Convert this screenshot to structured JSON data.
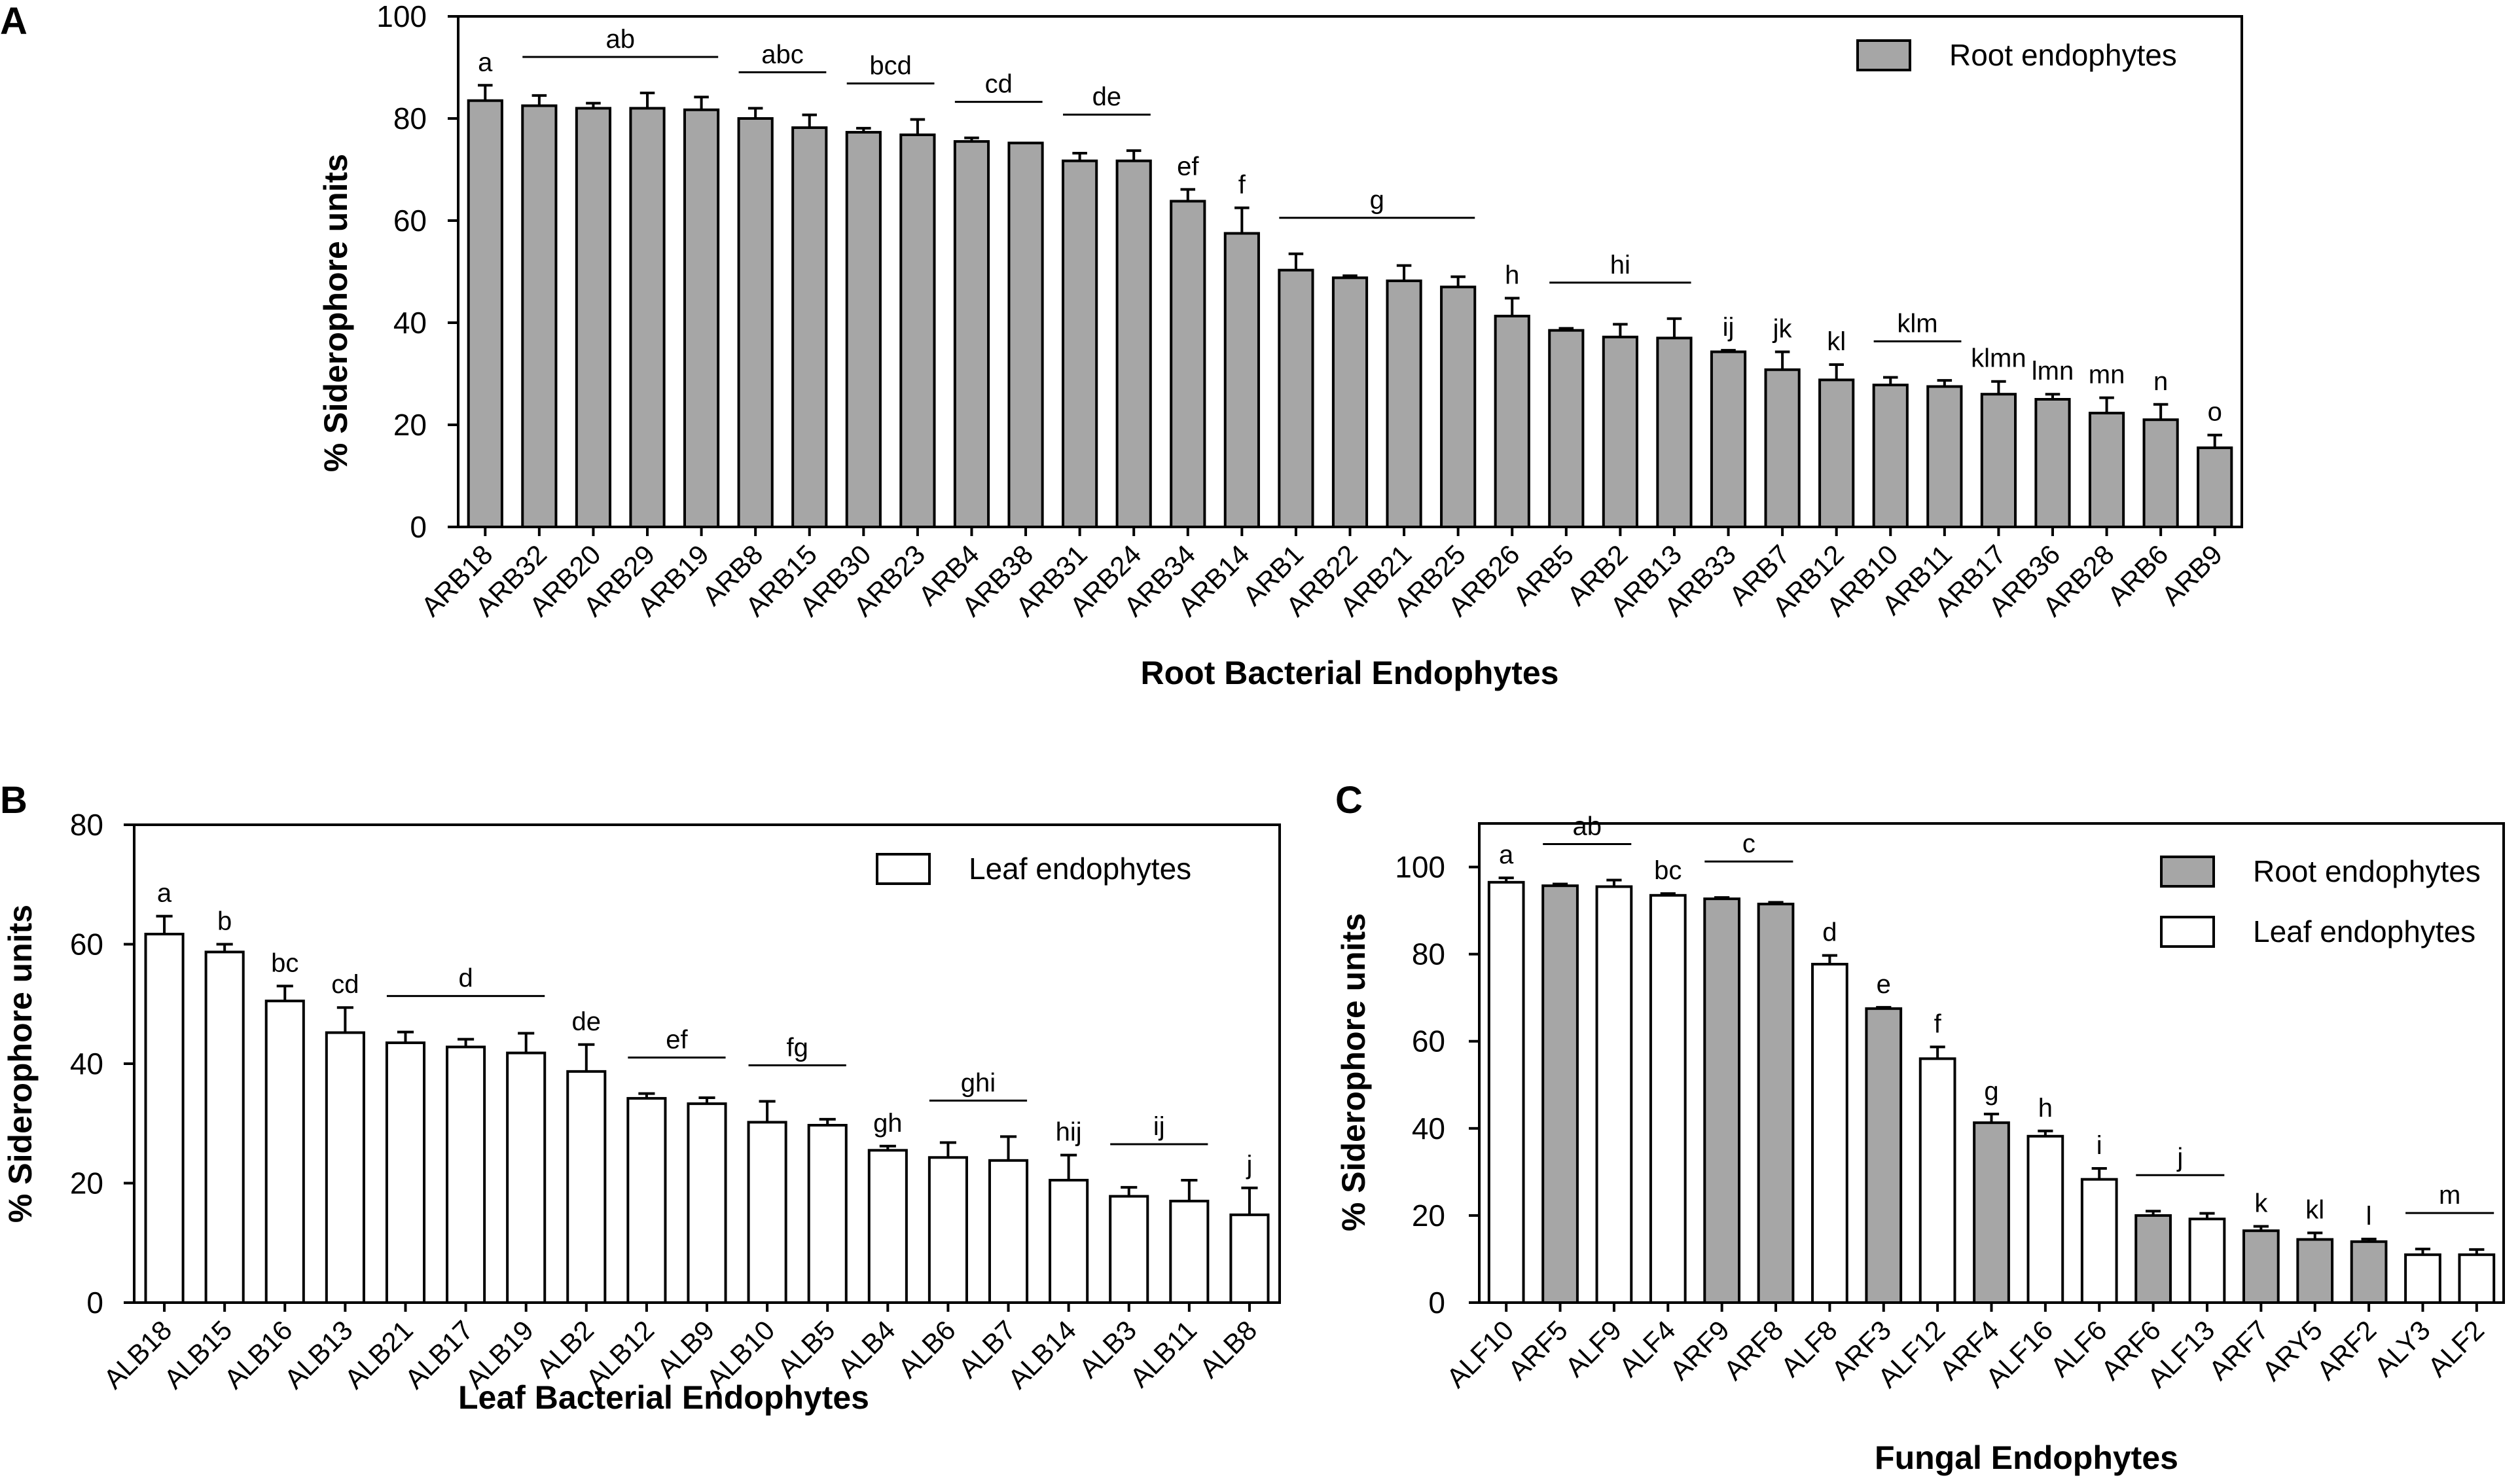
{
  "colors": {
    "root": "#a6a6a6",
    "leaf": "#ffffff",
    "stroke": "#000000"
  },
  "chart_data": [
    {
      "panel": "A",
      "type": "bar",
      "title": "",
      "xlabel": "Root Bacterial Endophytes",
      "ylabel": "% Siderophore units",
      "ylim": [
        0,
        100
      ],
      "yticks": [
        0,
        20,
        40,
        60,
        80,
        100
      ],
      "legend": [
        {
          "label": "Root endophytes",
          "kind": "root"
        }
      ],
      "legend_position": "top-right",
      "categories": [
        "ARB18",
        "ARB32",
        "ARB20",
        "ARB29",
        "ARB19",
        "ARB8",
        "ARB15",
        "ARB30",
        "ARB23",
        "ARB4",
        "ARB38",
        "ARB31",
        "ARB24",
        "ARB34",
        "ARB14",
        "ARB1",
        "ARB22",
        "ARB21",
        "ARB25",
        "ARB26",
        "ARB5",
        "ARB2",
        "ARB13",
        "ARB33",
        "ARB7",
        "ARB12",
        "ARB10",
        "ARB11",
        "ARB17",
        "ARB36",
        "ARB28",
        "ARB6",
        "ARB9"
      ],
      "values": [
        83.5,
        82.5,
        82,
        82,
        81.7,
        80,
        78.2,
        77.3,
        76.8,
        75.5,
        75.2,
        71.7,
        71.7,
        63.8,
        57.5,
        50.3,
        48.8,
        48.2,
        47,
        41.3,
        38.5,
        37.2,
        37,
        34.3,
        30.8,
        28.8,
        27.8,
        27.5,
        26,
        25,
        22.3,
        21,
        15.5
      ],
      "errors": [
        3,
        2,
        1,
        3,
        2.5,
        2,
        2.5,
        0.8,
        3,
        0.7,
        0,
        1.5,
        2,
        2.3,
        5,
        3.2,
        0.4,
        3,
        2,
        3.5,
        0.4,
        2.5,
        3.8,
        0.3,
        3.5,
        3,
        1.5,
        1.2,
        2.5,
        1,
        3,
        3,
        2.5
      ],
      "kinds": [
        "root"
      ],
      "groups": [
        {
          "label": "a",
          "from": 0,
          "to": 0,
          "line": false
        },
        {
          "label": "ab",
          "from": 1,
          "to": 4,
          "line": true
        },
        {
          "label": "abc",
          "from": 5,
          "to": 6,
          "line": true
        },
        {
          "label": "bcd",
          "from": 7,
          "to": 8,
          "line": true
        },
        {
          "label": "cd",
          "from": 9,
          "to": 10,
          "line": true
        },
        {
          "label": "de",
          "from": 11,
          "to": 12,
          "line": true
        },
        {
          "label": "ef",
          "from": 13,
          "to": 13,
          "line": false
        },
        {
          "label": "f",
          "from": 14,
          "to": 14,
          "line": false
        },
        {
          "label": "g",
          "from": 15,
          "to": 18,
          "line": true
        },
        {
          "label": "h",
          "from": 19,
          "to": 19,
          "line": false
        },
        {
          "label": "hi",
          "from": 20,
          "to": 22,
          "line": true
        },
        {
          "label": "ij",
          "from": 23,
          "to": 23,
          "line": false
        },
        {
          "label": "jk",
          "from": 24,
          "to": 24,
          "line": false
        },
        {
          "label": "kl",
          "from": 25,
          "to": 25,
          "line": false
        },
        {
          "label": "klm",
          "from": 26,
          "to": 27,
          "line": true
        },
        {
          "label": "klmn",
          "from": 28,
          "to": 28,
          "line": false
        },
        {
          "label": "lmn",
          "from": 29,
          "to": 29,
          "line": false
        },
        {
          "label": "mn",
          "from": 30,
          "to": 30,
          "line": false
        },
        {
          "label": "n",
          "from": 31,
          "to": 31,
          "line": false
        },
        {
          "label": "o",
          "from": 32,
          "to": 32,
          "line": false
        }
      ]
    },
    {
      "panel": "B",
      "type": "bar",
      "title": "",
      "xlabel": "Leaf Bacterial Endophytes",
      "ylabel": "% Siderophore units",
      "ylim": [
        0,
        80
      ],
      "yticks": [
        0,
        20,
        40,
        60,
        80
      ],
      "legend": [
        {
          "label": "Leaf endophytes",
          "kind": "leaf"
        }
      ],
      "legend_position": "top-right",
      "categories": [
        "ALB18",
        "ALB15",
        "ALB16",
        "ALB13",
        "ALB21",
        "ALB17",
        "ALB19",
        "ALB2",
        "ALB12",
        "ALB9",
        "ALB10",
        "ALB5",
        "ALB4",
        "ALB6",
        "ALB7",
        "ALB14",
        "ALB3",
        "ALB11",
        "ALB8"
      ],
      "values": [
        61.7,
        58.7,
        50.5,
        45.2,
        43.5,
        42.8,
        41.8,
        38.7,
        34.2,
        33.3,
        30.2,
        29.7,
        25.5,
        24.3,
        23.8,
        20.5,
        17.8,
        17,
        14.7
      ],
      "errors": [
        3,
        1.3,
        2.5,
        4.2,
        1.8,
        1.3,
        3.3,
        4.5,
        0.8,
        1,
        3.5,
        1,
        0.7,
        2.5,
        4,
        4.2,
        1.5,
        3.5,
        4.5
      ],
      "kinds": [
        "leaf"
      ],
      "groups": [
        {
          "label": "a",
          "from": 0,
          "to": 0,
          "line": false
        },
        {
          "label": "b",
          "from": 1,
          "to": 1,
          "line": false
        },
        {
          "label": "bc",
          "from": 2,
          "to": 2,
          "line": false
        },
        {
          "label": "cd",
          "from": 3,
          "to": 3,
          "line": false
        },
        {
          "label": "d",
          "from": 4,
          "to": 6,
          "line": true
        },
        {
          "label": "de",
          "from": 7,
          "to": 7,
          "line": false
        },
        {
          "label": "ef",
          "from": 8,
          "to": 9,
          "line": true
        },
        {
          "label": "fg",
          "from": 10,
          "to": 11,
          "line": true
        },
        {
          "label": "gh",
          "from": 12,
          "to": 12,
          "line": false
        },
        {
          "label": "ghi",
          "from": 13,
          "to": 14,
          "line": true
        },
        {
          "label": "hij",
          "from": 15,
          "to": 15,
          "line": false
        },
        {
          "label": "ij",
          "from": 16,
          "to": 17,
          "line": true
        },
        {
          "label": "j",
          "from": 18,
          "to": 18,
          "line": false
        }
      ]
    },
    {
      "panel": "C",
      "type": "bar",
      "title": "",
      "xlabel": "Fungal Endophytes",
      "ylabel": "% Siderophore units",
      "ylim": [
        0,
        110
      ],
      "yticks": [
        0,
        20,
        40,
        60,
        80,
        100
      ],
      "legend": [
        {
          "label": "Root endophytes",
          "kind": "root"
        },
        {
          "label": "Leaf endophytes",
          "kind": "leaf"
        }
      ],
      "legend_position": "top-right",
      "categories": [
        "ALF10",
        "ARF5",
        "ALF9",
        "ALF4",
        "ARF9",
        "ARF8",
        "ALF8",
        "ARF3",
        "ALF12",
        "ARF4",
        "ALF16",
        "ALF6",
        "ARF6",
        "ALF13",
        "ARF7",
        "ARY5",
        "ARF2",
        "ALY3",
        "ALF2"
      ],
      "values": [
        96.5,
        95.7,
        95.5,
        93.5,
        92.7,
        91.5,
        77.7,
        67.5,
        56,
        41.3,
        38.2,
        28.3,
        20,
        19.2,
        16.5,
        14.5,
        14,
        11,
        11
      ],
      "errors": [
        1,
        0.4,
        1.5,
        0.4,
        0.3,
        0.4,
        2,
        0.3,
        2.7,
        2,
        1.2,
        2.5,
        1,
        1.3,
        1,
        1.5,
        0.6,
        1.3,
        1.2
      ],
      "kinds": [
        "leaf",
        "root",
        "leaf",
        "leaf",
        "root",
        "root",
        "leaf",
        "root",
        "leaf",
        "root",
        "leaf",
        "leaf",
        "root",
        "leaf",
        "root",
        "root",
        "root",
        "leaf",
        "leaf"
      ],
      "groups": [
        {
          "label": "a",
          "from": 0,
          "to": 0,
          "line": false
        },
        {
          "label": "ab",
          "from": 1,
          "to": 2,
          "line": true
        },
        {
          "label": "bc",
          "from": 3,
          "to": 3,
          "line": false
        },
        {
          "label": "c",
          "from": 4,
          "to": 5,
          "line": true
        },
        {
          "label": "d",
          "from": 6,
          "to": 6,
          "line": false
        },
        {
          "label": "e",
          "from": 7,
          "to": 7,
          "line": false
        },
        {
          "label": "f",
          "from": 8,
          "to": 8,
          "line": false
        },
        {
          "label": "g",
          "from": 9,
          "to": 9,
          "line": false
        },
        {
          "label": "h",
          "from": 10,
          "to": 10,
          "line": false
        },
        {
          "label": "i",
          "from": 11,
          "to": 11,
          "line": false
        },
        {
          "label": "j",
          "from": 12,
          "to": 13,
          "line": true
        },
        {
          "label": "k",
          "from": 14,
          "to": 14,
          "line": false
        },
        {
          "label": "kl",
          "from": 15,
          "to": 15,
          "line": false
        },
        {
          "label": "l",
          "from": 16,
          "to": 16,
          "line": false
        },
        {
          "label": "m",
          "from": 17,
          "to": 18,
          "line": true
        }
      ]
    }
  ]
}
